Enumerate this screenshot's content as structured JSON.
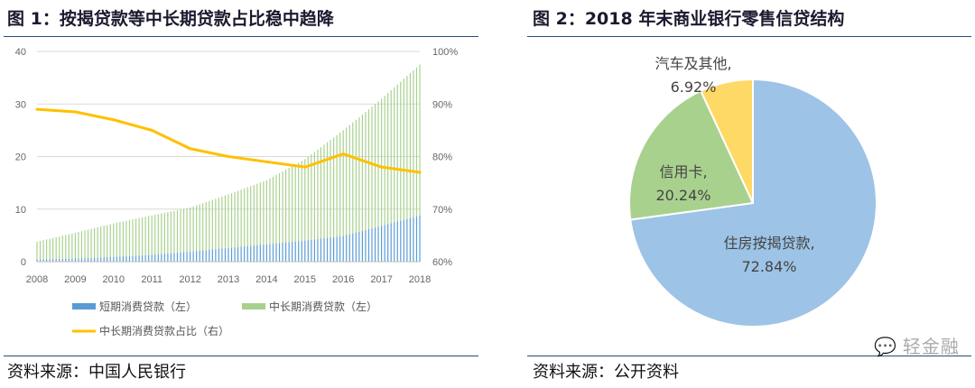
{
  "left": {
    "title": "图 1：按揭贷款等中长期贷款占比稳中趋降",
    "source": "资料来源：中国人民银行"
  },
  "right": {
    "title": "图 2：2018 年末商业银行零售信贷结构",
    "source": "资料来源：公开资料"
  },
  "watermark": "轻金融",
  "chart_data": [
    {
      "type": "bar+line",
      "x": [
        "2008",
        "2009",
        "2010",
        "2011",
        "2012",
        "2013",
        "2014",
        "2015",
        "2016",
        "2017",
        "2018"
      ],
      "left_ylim": [
        0,
        40
      ],
      "left_ticks": [
        "0",
        "10",
        "20",
        "30",
        "40"
      ],
      "right_ylim": [
        60,
        100
      ],
      "right_ticks": [
        "60%",
        "70%",
        "80%",
        "90%",
        "100%"
      ],
      "grid": true,
      "legend": "bottom",
      "stacked": true,
      "series": [
        {
          "name": "短期消费贷款（左）",
          "type": "bar",
          "color": "#5B9BD5",
          "values": [
            0.4,
            0.6,
            0.9,
            1.3,
            1.9,
            2.6,
            3.3,
            4.0,
            4.9,
            6.8,
            8.8
          ]
        },
        {
          "name": "中长期消费贷款（左）",
          "type": "bar",
          "color": "#A9D18E",
          "values": [
            3.4,
            4.9,
            6.4,
            7.5,
            8.4,
            10.2,
            12.2,
            15.5,
            20.1,
            24.2,
            28.7
          ]
        },
        {
          "name": "中长期消费贷款占比（右）",
          "type": "line",
          "color": "#FFC000",
          "values": [
            89,
            88.5,
            87,
            85,
            81.5,
            80,
            79,
            78,
            80.5,
            78,
            77
          ]
        }
      ]
    },
    {
      "type": "pie",
      "color_order": "clockwise from top",
      "slices": [
        {
          "label": "住房按揭贷款,",
          "value": "72.84%",
          "pct": 72.84,
          "color": "#9DC3E6"
        },
        {
          "label": "信用卡,",
          "value": "20.24%",
          "pct": 20.24,
          "color": "#A9D18E"
        },
        {
          "label": "汽车及其他,",
          "value": "6.92%",
          "pct": 6.92,
          "color": "#FFD966"
        }
      ]
    }
  ]
}
